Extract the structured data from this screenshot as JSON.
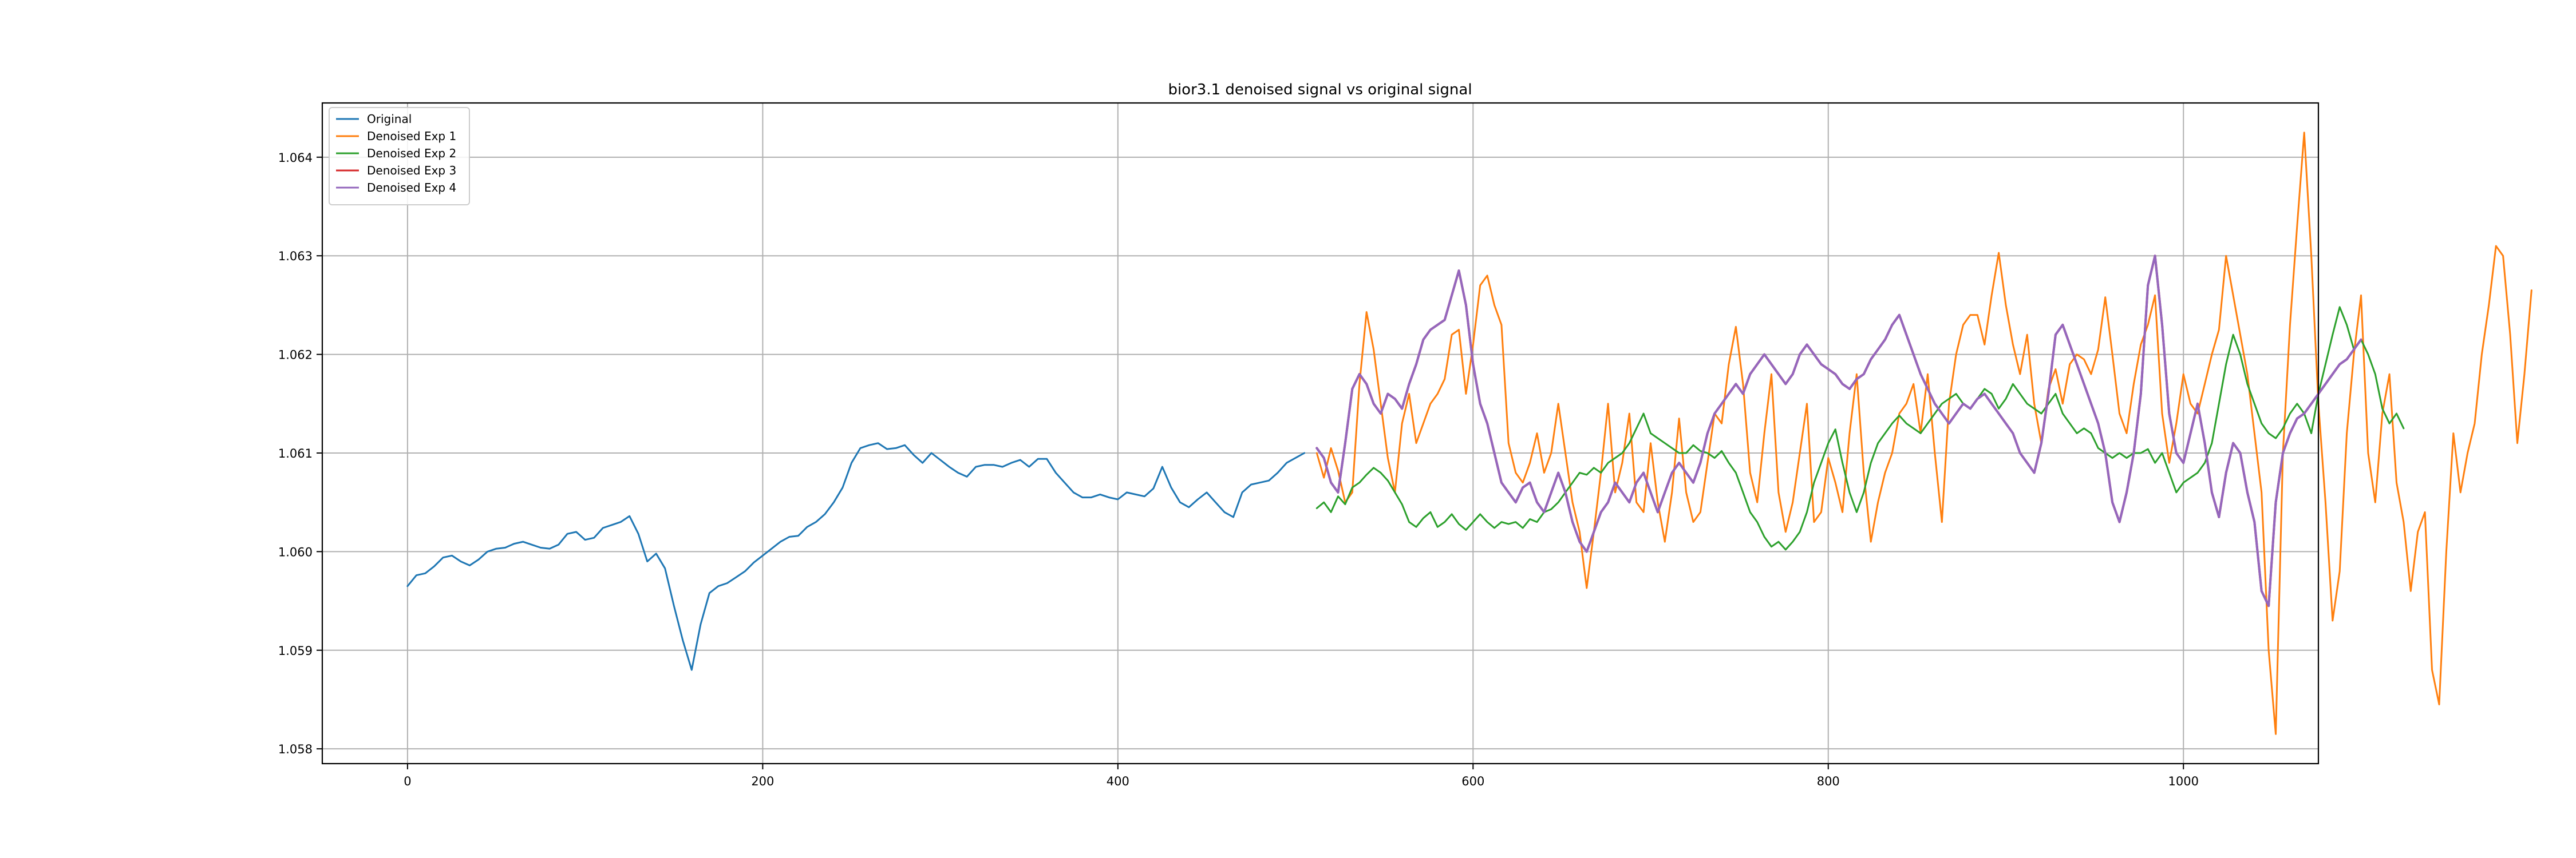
{
  "chart_data": {
    "type": "line",
    "title": "bior3.1 denoised signal vs original signal",
    "xlabel": "",
    "ylabel": "",
    "xlim": [
      -48,
      1076
    ],
    "ylim": [
      1.05785,
      1.06455
    ],
    "xticks": [
      0,
      200,
      400,
      600,
      800,
      1000
    ],
    "xtick_labels": [
      "0",
      "200",
      "400",
      "600",
      "800",
      "1000"
    ],
    "yticks": [
      1.058,
      1.059,
      1.06,
      1.061,
      1.062,
      1.063,
      1.064
    ],
    "ytick_labels": [
      "1.058",
      "1.059",
      "1.060",
      "1.061",
      "1.062",
      "1.063",
      "1.064"
    ],
    "grid": true,
    "legend_position": "upper-left",
    "series": [
      {
        "name": "Original",
        "color": "#1f77b4",
        "x_start": 0,
        "x_step": 5,
        "values": [
          1.05965,
          1.05976,
          1.05978,
          1.05985,
          1.05994,
          1.05996,
          1.0599,
          1.05986,
          1.05992,
          1.06,
          1.06003,
          1.06004,
          1.06008,
          1.0601,
          1.06007,
          1.06004,
          1.06003,
          1.06007,
          1.06018,
          1.0602,
          1.06012,
          1.06014,
          1.06024,
          1.06027,
          1.0603,
          1.06036,
          1.06018,
          1.0599,
          1.05998,
          1.05983,
          1.05945,
          1.0591,
          1.0588,
          1.05926,
          1.05958,
          1.05965,
          1.05968,
          1.05974,
          1.0598,
          1.05989,
          1.05996,
          1.06003,
          1.0601,
          1.06015,
          1.06016,
          1.06025,
          1.0603,
          1.06038,
          1.0605,
          1.06065,
          1.0609,
          1.06105,
          1.06108,
          1.0611,
          1.06104,
          1.06105,
          1.06108,
          1.06098,
          1.0609,
          1.061,
          1.06093,
          1.06086,
          1.0608,
          1.06076,
          1.06086,
          1.06088,
          1.06088,
          1.06086,
          1.0609,
          1.06093,
          1.06086,
          1.06094,
          1.06094,
          1.0608,
          1.0607,
          1.0606,
          1.06055,
          1.06055,
          1.06058,
          1.06055,
          1.06053,
          1.0606,
          1.06058,
          1.06056,
          1.06064,
          1.06086,
          1.06065,
          1.0605,
          1.06045,
          1.06053,
          1.0606,
          1.0605,
          1.0604,
          1.06035,
          1.0606,
          1.06068,
          1.0607,
          1.06072,
          1.0608,
          1.0609,
          1.06095,
          1.061
        ]
      },
      {
        "name": "Denoised Exp 1",
        "color": "#ff7f0e",
        "x_start": 512,
        "x_step": 4,
        "values": [
          1.061,
          1.06075,
          1.06105,
          1.06082,
          1.0605,
          1.0606,
          1.0617,
          1.06243,
          1.06205,
          1.0615,
          1.06095,
          1.0606,
          1.0613,
          1.0616,
          1.0611,
          1.0613,
          1.0615,
          1.0616,
          1.06175,
          1.0622,
          1.06225,
          1.0616,
          1.0621,
          1.0627,
          1.0628,
          1.0625,
          1.0623,
          1.0611,
          1.0608,
          1.0607,
          1.0609,
          1.0612,
          1.0608,
          1.061,
          1.0615,
          1.061,
          1.0605,
          1.0602,
          1.05963,
          1.0602,
          1.0608,
          1.0615,
          1.0606,
          1.0609,
          1.0614,
          1.0605,
          1.0604,
          1.0611,
          1.0605,
          1.0601,
          1.0606,
          1.06135,
          1.0606,
          1.0603,
          1.0604,
          1.0609,
          1.0614,
          1.0613,
          1.0619,
          1.06228,
          1.0617,
          1.0608,
          1.0605,
          1.0612,
          1.0618,
          1.0606,
          1.0602,
          1.0605,
          1.061,
          1.0615,
          1.0603,
          1.0604,
          1.06095,
          1.0607,
          1.0604,
          1.0612,
          1.0618,
          1.0608,
          1.0601,
          1.0605,
          1.0608,
          1.061,
          1.0614,
          1.0615,
          1.0617,
          1.0612,
          1.0618,
          1.061,
          1.0603,
          1.0615,
          1.062,
          1.0623,
          1.0624,
          1.0624,
          1.0621,
          1.0626,
          1.06303,
          1.0625,
          1.0621,
          1.0618,
          1.0622,
          1.0615,
          1.0611,
          1.06165,
          1.06185,
          1.0615,
          1.0619,
          1.062,
          1.06195,
          1.0618,
          1.06205,
          1.06258,
          1.062,
          1.0614,
          1.0612,
          1.0617,
          1.0621,
          1.0623,
          1.0626,
          1.0614,
          1.0609,
          1.0613,
          1.0618,
          1.0615,
          1.0614,
          1.0617,
          1.062,
          1.06225,
          1.063,
          1.0626,
          1.0622,
          1.0618,
          1.0612,
          1.0606,
          1.059,
          1.05815,
          1.061,
          1.0623,
          1.0633,
          1.06425,
          1.063,
          1.0615,
          1.0605,
          1.0593,
          1.0598,
          1.0612,
          1.062,
          1.0626,
          1.061,
          1.0605,
          1.0614,
          1.0618,
          1.0607,
          1.0603,
          1.0596,
          1.0602,
          1.0604,
          1.0588,
          1.05845,
          1.06,
          1.0612,
          1.0606,
          1.061,
          1.0613,
          1.062,
          1.0625,
          1.0631,
          1.063,
          1.0622,
          1.0611,
          1.0618,
          1.06265
        ]
      },
      {
        "name": "Denoised Exp 2",
        "color": "#2ca02c",
        "x_start": 512,
        "x_step": 4,
        "values": [
          1.06044,
          1.0605,
          1.0604,
          1.06056,
          1.06048,
          1.06065,
          1.0607,
          1.06078,
          1.06085,
          1.0608,
          1.06072,
          1.0606,
          1.06048,
          1.0603,
          1.06025,
          1.06034,
          1.0604,
          1.06025,
          1.0603,
          1.06038,
          1.06028,
          1.06022,
          1.0603,
          1.06038,
          1.0603,
          1.06024,
          1.0603,
          1.06028,
          1.0603,
          1.06024,
          1.06033,
          1.0603,
          1.0604,
          1.06043,
          1.0605,
          1.0606,
          1.0607,
          1.0608,
          1.06078,
          1.06085,
          1.0608,
          1.0609,
          1.06095,
          1.061,
          1.0611,
          1.06125,
          1.0614,
          1.0612,
          1.06115,
          1.0611,
          1.06105,
          1.061,
          1.061,
          1.06108,
          1.06102,
          1.061,
          1.06095,
          1.06102,
          1.0609,
          1.0608,
          1.0606,
          1.0604,
          1.0603,
          1.06015,
          1.06005,
          1.0601,
          1.06002,
          1.0601,
          1.0602,
          1.0604,
          1.0607,
          1.0609,
          1.0611,
          1.06124,
          1.0609,
          1.0606,
          1.0604,
          1.0606,
          1.0609,
          1.0611,
          1.0612,
          1.0613,
          1.06138,
          1.0613,
          1.06125,
          1.0612,
          1.0613,
          1.0614,
          1.0615,
          1.06155,
          1.0616,
          1.0615,
          1.06145,
          1.06155,
          1.06165,
          1.0616,
          1.06145,
          1.06155,
          1.0617,
          1.0616,
          1.0615,
          1.06145,
          1.0614,
          1.0615,
          1.0616,
          1.0614,
          1.0613,
          1.0612,
          1.06125,
          1.0612,
          1.06105,
          1.061,
          1.06095,
          1.061,
          1.06095,
          1.061,
          1.061,
          1.06104,
          1.0609,
          1.061,
          1.0608,
          1.0606,
          1.0607,
          1.06075,
          1.0608,
          1.0609,
          1.0611,
          1.0615,
          1.0619,
          1.0622,
          1.062,
          1.0617,
          1.0615,
          1.0613,
          1.0612,
          1.06115,
          1.06125,
          1.0614,
          1.0615,
          1.0614,
          1.0612,
          1.0616,
          1.0619,
          1.0622,
          1.06248,
          1.0623,
          1.06205,
          1.06215,
          1.062,
          1.0618,
          1.06145,
          1.0613,
          1.0614,
          1.06125
        ]
      },
      {
        "name": "Denoised Exp 3",
        "color": "#d62728",
        "x_start": 512,
        "x_step": 4,
        "values": [
          1.06105,
          1.06095,
          1.0607,
          1.0606,
          1.0611,
          1.06165,
          1.0618,
          1.0617,
          1.0615,
          1.0614,
          1.0616,
          1.06155,
          1.06145,
          1.0617,
          1.0619,
          1.06215,
          1.06225,
          1.0623,
          1.06235,
          1.0626,
          1.06285,
          1.0625,
          1.0619,
          1.0615,
          1.0613,
          1.061,
          1.0607,
          1.0606,
          1.0605,
          1.06065,
          1.0607,
          1.0605,
          1.0604,
          1.0606,
          1.0608,
          1.0606,
          1.0603,
          1.0601,
          1.06,
          1.0602,
          1.0604,
          1.0605,
          1.0607,
          1.0606,
          1.0605,
          1.0607,
          1.0608,
          1.0606,
          1.0604,
          1.0606,
          1.0608,
          1.0609,
          1.0608,
          1.0607,
          1.0609,
          1.0612,
          1.0614,
          1.0615,
          1.0616,
          1.0617,
          1.0616,
          1.0618,
          1.0619,
          1.062,
          1.0619,
          1.0618,
          1.0617,
          1.0618,
          1.062,
          1.0621,
          1.062,
          1.0619,
          1.06185,
          1.0618,
          1.0617,
          1.06165,
          1.06175,
          1.0618,
          1.06195,
          1.06205,
          1.06215,
          1.0623,
          1.0624,
          1.0622,
          1.062,
          1.0618,
          1.06165,
          1.0615,
          1.0614,
          1.0613,
          1.0614,
          1.0615,
          1.06145,
          1.06155,
          1.0616,
          1.0615,
          1.0614,
          1.0613,
          1.0612,
          1.061,
          1.0609,
          1.0608,
          1.0611,
          1.0616,
          1.0622,
          1.0623,
          1.0621,
          1.0619,
          1.0617,
          1.0615,
          1.0613,
          1.061,
          1.0605,
          1.0603,
          1.0606,
          1.061,
          1.0616,
          1.0627,
          1.063,
          1.0623,
          1.0614,
          1.061,
          1.0609,
          1.0612,
          1.0615,
          1.0611,
          1.0606,
          1.06035,
          1.0608,
          1.0611,
          1.061,
          1.0606,
          1.0603,
          1.0596,
          1.05945,
          1.0605,
          1.061,
          1.0612,
          1.06135,
          1.0614,
          1.0615,
          1.0616,
          1.0617,
          1.0618,
          1.0619,
          1.06195,
          1.06205,
          1.06215
        ]
      },
      {
        "name": "Denoised Exp 4",
        "color": "#9467bd",
        "x_start": 512,
        "x_step": 4,
        "values": [
          1.06105,
          1.06095,
          1.0607,
          1.0606,
          1.0611,
          1.06165,
          1.0618,
          1.0617,
          1.0615,
          1.0614,
          1.0616,
          1.06155,
          1.06145,
          1.0617,
          1.0619,
          1.06215,
          1.06225,
          1.0623,
          1.06235,
          1.0626,
          1.06285,
          1.0625,
          1.0619,
          1.0615,
          1.0613,
          1.061,
          1.0607,
          1.0606,
          1.0605,
          1.06065,
          1.0607,
          1.0605,
          1.0604,
          1.0606,
          1.0608,
          1.0606,
          1.0603,
          1.0601,
          1.06,
          1.0602,
          1.0604,
          1.0605,
          1.0607,
          1.0606,
          1.0605,
          1.0607,
          1.0608,
          1.0606,
          1.0604,
          1.0606,
          1.0608,
          1.0609,
          1.0608,
          1.0607,
          1.0609,
          1.0612,
          1.0614,
          1.0615,
          1.0616,
          1.0617,
          1.0616,
          1.0618,
          1.0619,
          1.062,
          1.0619,
          1.0618,
          1.0617,
          1.0618,
          1.062,
          1.0621,
          1.062,
          1.0619,
          1.06185,
          1.0618,
          1.0617,
          1.06165,
          1.06175,
          1.0618,
          1.06195,
          1.06205,
          1.06215,
          1.0623,
          1.0624,
          1.0622,
          1.062,
          1.0618,
          1.06165,
          1.0615,
          1.0614,
          1.0613,
          1.0614,
          1.0615,
          1.06145,
          1.06155,
          1.0616,
          1.0615,
          1.0614,
          1.0613,
          1.0612,
          1.061,
          1.0609,
          1.0608,
          1.0611,
          1.0616,
          1.0622,
          1.0623,
          1.0621,
          1.0619,
          1.0617,
          1.0615,
          1.0613,
          1.061,
          1.0605,
          1.0603,
          1.0606,
          1.061,
          1.0616,
          1.0627,
          1.063,
          1.0623,
          1.0614,
          1.061,
          1.0609,
          1.0612,
          1.0615,
          1.0611,
          1.0606,
          1.06035,
          1.0608,
          1.0611,
          1.061,
          1.0606,
          1.0603,
          1.0596,
          1.05945,
          1.0605,
          1.061,
          1.0612,
          1.06135,
          1.0614,
          1.0615,
          1.0616,
          1.0617,
          1.0618,
          1.0619,
          1.06195,
          1.06205,
          1.06215
        ]
      }
    ]
  }
}
